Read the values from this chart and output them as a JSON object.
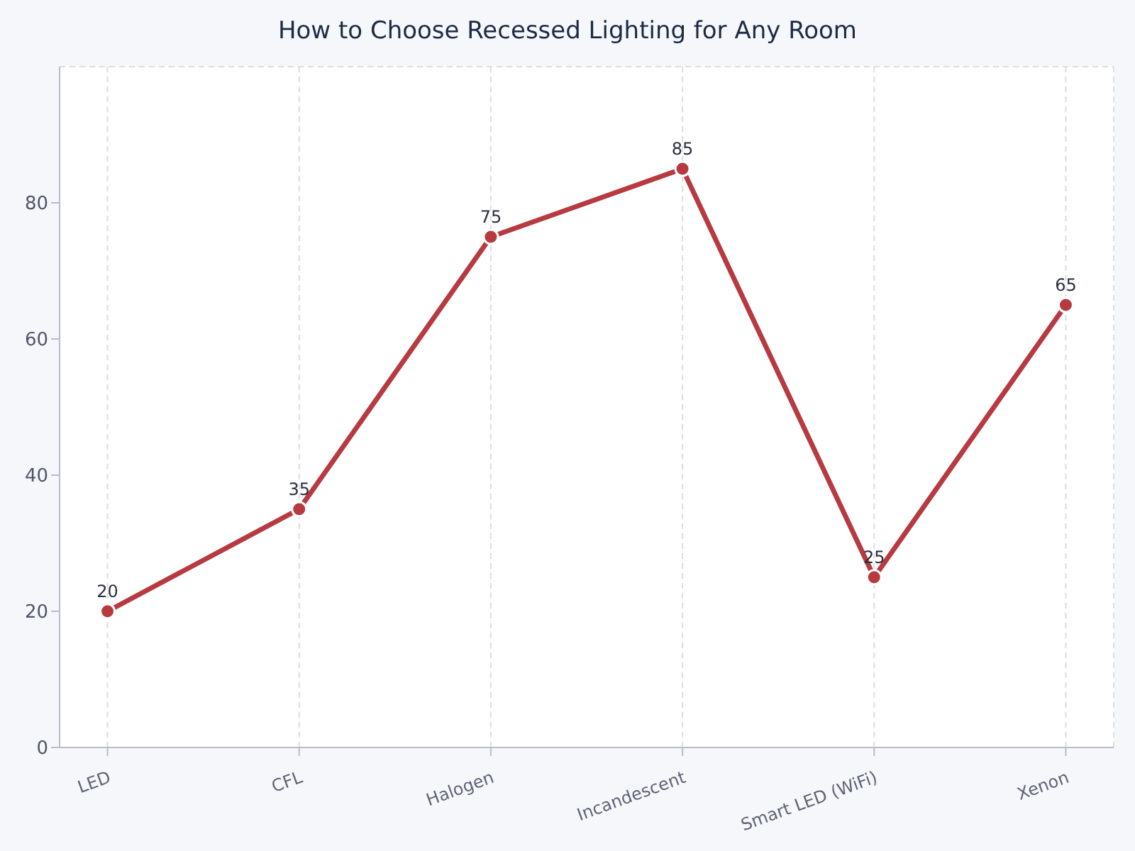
{
  "chart_data": {
    "type": "line",
    "title": "How to Choose Recessed Lighting for Any Room",
    "categories": [
      "LED",
      "CFL",
      "Halogen",
      "Incandescent",
      "Smart LED (WiFi)",
      "Xenon"
    ],
    "series": [
      {
        "color": "#b83a41",
        "values": [
          20,
          35,
          75,
          85,
          25,
          65
        ]
      }
    ],
    "ylim": [
      0,
      100
    ],
    "yticks": [
      0,
      20,
      40,
      60,
      80
    ],
    "grid": true,
    "marker": "circle",
    "line_style": "solid",
    "data_labels": true,
    "legend": false
  }
}
